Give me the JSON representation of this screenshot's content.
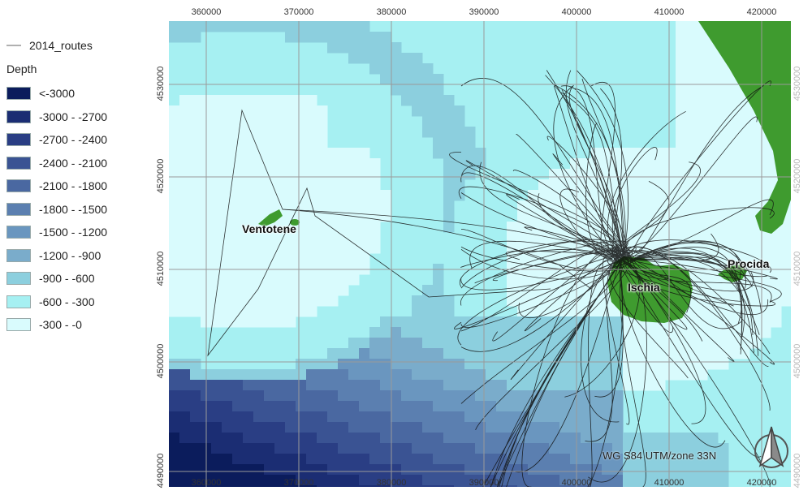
{
  "legend": {
    "route_layer_label": "2014_routes",
    "depth_title": "Depth",
    "classes": [
      {
        "label": "<-3000",
        "color": "#0b1c5c"
      },
      {
        "label": "-3000 - -2700",
        "color": "#1b2d73"
      },
      {
        "label": "-2700 - -2400",
        "color": "#2a3e84"
      },
      {
        "label": "-2400 - -2100",
        "color": "#3a5393"
      },
      {
        "label": "-2100 - -1800",
        "color": "#4a68a1"
      },
      {
        "label": "-1800 - -1500",
        "color": "#5b7fb0"
      },
      {
        "label": "-1500 - -1200",
        "color": "#6a96bf"
      },
      {
        "label": "-1200 - -900",
        "color": "#7aaccb"
      },
      {
        "label": "-900 - -600",
        "color": "#8ccfde"
      },
      {
        "label": "-600 - -300",
        "color": "#a6f0f2"
      },
      {
        "label": "-300 - -0",
        "color": "#d9fbfd"
      }
    ]
  },
  "map": {
    "x_ticks": [
      "360000",
      "370000",
      "380000",
      "390000",
      "400000",
      "410000",
      "420000"
    ],
    "y_ticks": [
      "4530000",
      "4520000",
      "4510000",
      "4500000",
      "4490000"
    ],
    "islands": {
      "ventotene": "Ventotene",
      "ischia": "Ischia",
      "procida": "Procida"
    },
    "crs_label": "WG S84 UTM/zone 33N",
    "land_color": "#3f9b2f",
    "route_color": "#111111",
    "grid_color": "#9a9a9a"
  }
}
